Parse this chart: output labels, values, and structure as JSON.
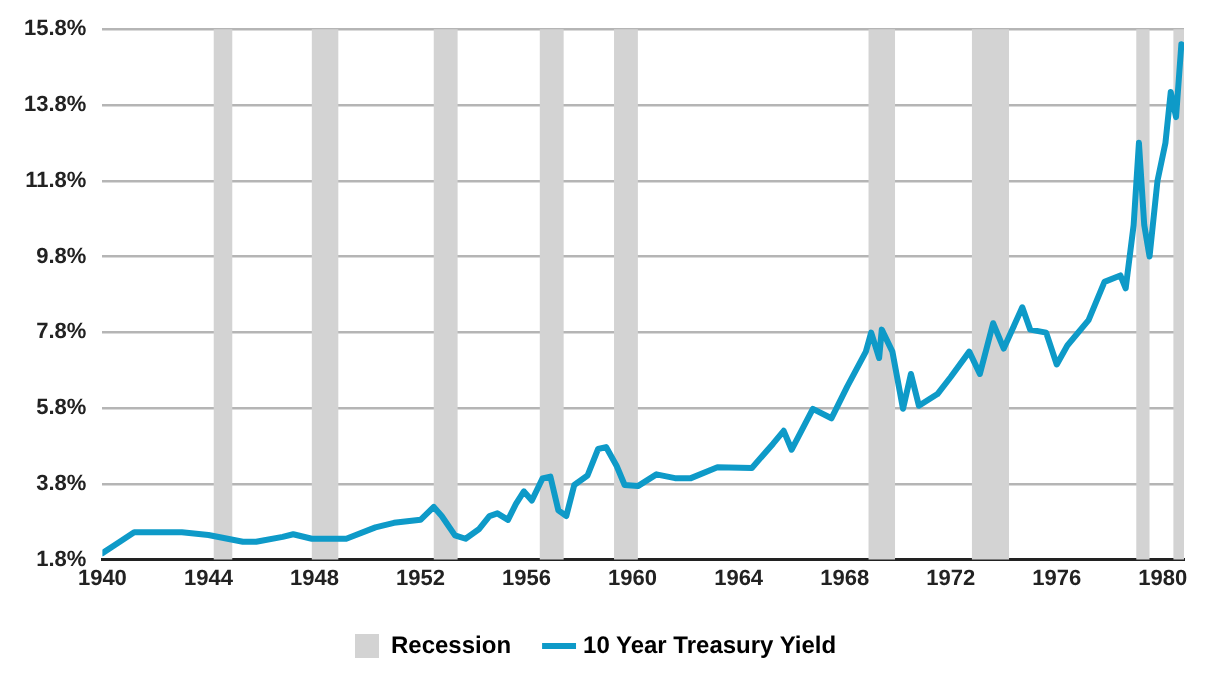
{
  "chart_data": {
    "type": "line",
    "x": [
      1940.0,
      1940.5,
      1941.2,
      1943.0,
      1944.0,
      1945.3,
      1945.8,
      1946.8,
      1947.2,
      1947.9,
      1949.2,
      1950.3,
      1951.0,
      1952.0,
      1952.5,
      1952.8,
      1953.3,
      1953.7,
      1954.2,
      1954.6,
      1954.9,
      1955.3,
      1955.6,
      1955.9,
      1956.2,
      1956.6,
      1956.9,
      1957.2,
      1957.5,
      1957.8,
      1958.3,
      1958.7,
      1959.0,
      1959.4,
      1959.7,
      1960.2,
      1960.9,
      1961.6,
      1962.2,
      1963.2,
      1964.5,
      1965.3,
      1965.7,
      1966.0,
      1966.8,
      1967.5,
      1968.1,
      1968.8,
      1969.0,
      1969.3,
      1969.4,
      1969.8,
      1970.2,
      1970.5,
      1970.8,
      1971.5,
      1972.0,
      1972.7,
      1973.1,
      1973.6,
      1974.0,
      1974.7,
      1975.0,
      1975.6,
      1976.0,
      1976.4,
      1977.2,
      1977.8,
      1978.4,
      1978.6,
      1978.9,
      1979.1,
      1979.3,
      1979.5,
      1979.8,
      1980.1,
      1980.3,
      1980.5,
      1980.7
    ],
    "series": [
      {
        "name": "10 Year Treasury Yield",
        "color": "#0e9ac8",
        "values": [
          1.97,
          2.2,
          2.52,
          2.52,
          2.45,
          2.27,
          2.27,
          2.4,
          2.47,
          2.35,
          2.35,
          2.65,
          2.77,
          2.85,
          3.19,
          2.95,
          2.44,
          2.35,
          2.6,
          2.95,
          3.02,
          2.85,
          3.27,
          3.6,
          3.36,
          3.94,
          3.99,
          3.1,
          2.95,
          3.77,
          4.02,
          4.72,
          4.77,
          4.27,
          3.77,
          3.74,
          4.05,
          3.95,
          3.95,
          4.24,
          4.22,
          4.86,
          5.2,
          4.7,
          5.78,
          5.53,
          6.37,
          7.29,
          7.79,
          7.12,
          7.87,
          7.29,
          5.78,
          6.7,
          5.86,
          6.17,
          6.62,
          7.29,
          6.7,
          8.04,
          7.37,
          8.46,
          7.87,
          7.79,
          6.95,
          7.45,
          8.12,
          9.13,
          9.3,
          8.96,
          10.63,
          12.8,
          10.63,
          9.8,
          11.8,
          12.8,
          14.14,
          13.48,
          15.4
        ]
      }
    ],
    "xlim": [
      1940,
      1980.8
    ],
    "xticks": [
      1940,
      1944,
      1948,
      1952,
      1956,
      1960,
      1964,
      1968,
      1972,
      1976,
      1980
    ],
    "ylim": [
      1.8,
      15.8
    ],
    "yticks": [
      {
        "value": 1.8,
        "label": "1.8%"
      },
      {
        "value": 3.8,
        "label": "3.8%"
      },
      {
        "value": 5.8,
        "label": "5.8%"
      },
      {
        "value": 7.8,
        "label": "7.8%"
      },
      {
        "value": 9.8,
        "label": "9.8%"
      },
      {
        "value": 11.8,
        "label": "11.8%"
      },
      {
        "value": 13.8,
        "label": "13.8%"
      },
      {
        "value": 15.8,
        "label": "15.8%"
      }
    ],
    "bands": [
      {
        "axis": "x",
        "from": 1944.2,
        "to": 1944.9,
        "label": "Recession",
        "color": "#d3d3d3"
      },
      {
        "axis": "x",
        "from": 1947.9,
        "to": 1948.9,
        "color": "#d3d3d3"
      },
      {
        "axis": "x",
        "from": 1952.5,
        "to": 1953.4,
        "color": "#d3d3d3"
      },
      {
        "axis": "x",
        "from": 1956.5,
        "to": 1957.4,
        "color": "#d3d3d3"
      },
      {
        "axis": "x",
        "from": 1959.3,
        "to": 1960.2,
        "color": "#d3d3d3"
      },
      {
        "axis": "x",
        "from": 1968.9,
        "to": 1969.9,
        "color": "#d3d3d3"
      },
      {
        "axis": "x",
        "from": 1972.8,
        "to": 1974.2,
        "color": "#d3d3d3"
      },
      {
        "axis": "x",
        "from": 1979.0,
        "to": 1979.5,
        "color": "#d3d3d3"
      },
      {
        "axis": "x",
        "from": 1980.4,
        "to": 1980.8,
        "color": "#d3d3d3"
      }
    ],
    "grid": "y",
    "legend": "bottom",
    "marker": "none",
    "line_style": "solid"
  }
}
